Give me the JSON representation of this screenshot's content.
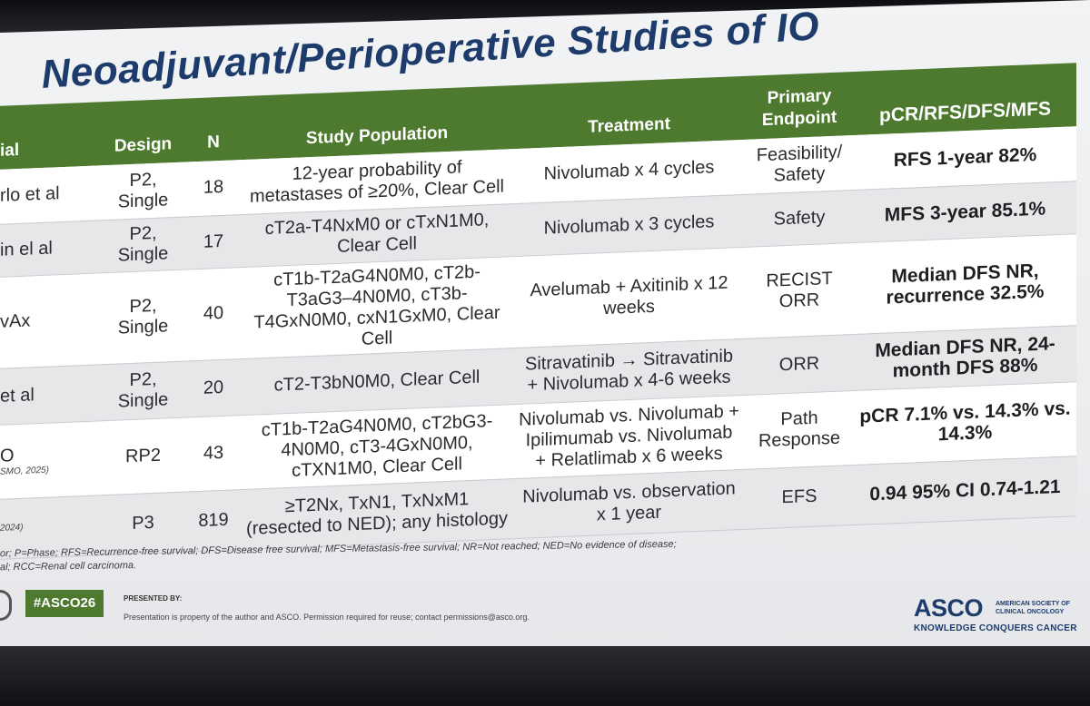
{
  "slide": {
    "title_line1": "Perioperative Studies of IO",
    "title_line2": "Neoadjuvant/Perioperative Studies of IO"
  },
  "table": {
    "headers": [
      "ial",
      "Design",
      "N",
      "Study Population",
      "Treatment",
      "Primary Endpoint",
      "pCR/RFS/DFS/MFS"
    ],
    "rows": [
      {
        "trial": "rlo et al",
        "cite": "",
        "design": "P2, Single",
        "n": "18",
        "population": "12-year probability of metastases of ≥20%, Clear Cell",
        "treatment": "Nivolumab x 4 cycles",
        "endpoint": "Feasibility/ Safety",
        "result": "RFS 1-year 82%"
      },
      {
        "trial": "in el al",
        "cite": "",
        "design": "P2, Single",
        "n": "17",
        "population": "cT2a-T4NxM0 or cTxN1M0, Clear Cell",
        "treatment": "Nivolumab x 3 cycles",
        "endpoint": "Safety",
        "result": "MFS 3-year 85.1%"
      },
      {
        "trial": "vAx",
        "cite": "",
        "design": "P2, Single",
        "n": "40",
        "population": "cT1b-T2aG4N0M0, cT2b-T3aG3–4N0M0, cT3b-T4GxN0M0, cxN1GxM0, Clear Cell",
        "treatment": "Avelumab + Axitinib x 12 weeks",
        "endpoint": "RECIST ORR",
        "result": "Median DFS NR, recurrence 32.5%"
      },
      {
        "trial": "et al",
        "cite": "",
        "design": "P2, Single",
        "n": "20",
        "population": "cT2-T3bN0M0, Clear Cell",
        "treatment": "Sitravatinib → Sitravatinib + Nivolumab x 4-6 weeks",
        "endpoint": "ORR",
        "result": "Median DFS NR, 24-month DFS 88%"
      },
      {
        "trial": "O",
        "cite": "SMO, 2025)",
        "design": "RP2",
        "n": "43",
        "population": "cT1b-T2aG4N0M0, cT2bG3-4N0M0, cT3-4GxN0M0, cTXN1M0, Clear Cell",
        "treatment": "Nivolumab vs. Nivolumab + Ipilimumab vs. Nivolumab + Relatlimab x 6 weeks",
        "endpoint": "Path Response",
        "result": "pCR 7.1% vs. 14.3% vs. 14.3%"
      },
      {
        "trial": "",
        "cite": "2024)",
        "design": "P3",
        "n": "819",
        "population": "≥T2Nx, TxN1, TxNxM1 (resected to NED); any histology",
        "treatment": "Nivolumab vs. observation x 1 year",
        "endpoint": "EFS",
        "result": "0.94 95% CI 0.74-1.21"
      }
    ]
  },
  "footnote": {
    "line1": "or; P=Phase; RFS=Recurrence-free survival; DFS=Disease free survival; MFS=Metastasis-free survival; NR=Not reached; NED=No evidence of disease;",
    "line2": "al; RCC=Renal cell carcinoma."
  },
  "footer": {
    "hashtag": "#ASCO26",
    "presented_by": "PRESENTED BY:",
    "notice": "Presentation is property of the author and ASCO. Permission required for reuse; contact permissions@asco.org.",
    "asco_word": "ASCO",
    "asco_org": "AMERICAN SOCIETY OF CLINICAL ONCOLOGY",
    "asco_tagline": "KNOWLEDGE CONQUERS CANCER"
  },
  "colors": {
    "header_green": "#4d7a2f",
    "title_navy": "#1d3c6c"
  }
}
